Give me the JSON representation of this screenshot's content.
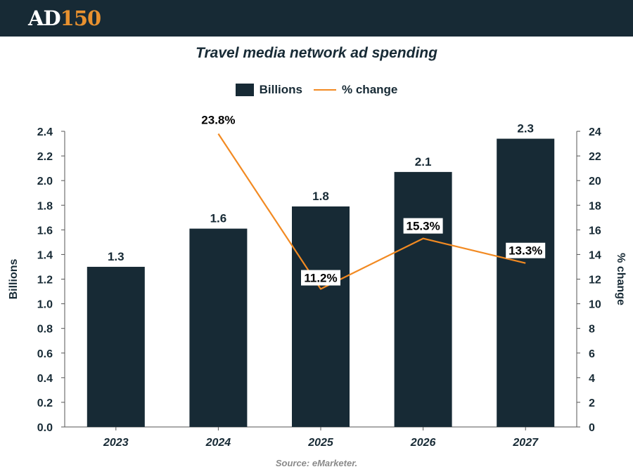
{
  "brand": {
    "logo_part1": "AD",
    "logo_part2": "150"
  },
  "colors": {
    "header_bg": "#172a35",
    "bar": "#172a35",
    "line": "#f28a22",
    "logo_accent": "#e8912f",
    "source_text": "#8a8a8a"
  },
  "source": "Source: eMarketer.",
  "chart_data": {
    "type": "bar",
    "title": "Travel media network ad spending",
    "categories": [
      "2023",
      "2024",
      "2025",
      "2026",
      "2027"
    ],
    "series": [
      {
        "name": "Billions",
        "kind": "bar",
        "axis": "left",
        "values": [
          1.3,
          1.61,
          1.79,
          2.07,
          2.34
        ],
        "labels": [
          "1.3",
          "1.6",
          "1.8",
          "2.1",
          "2.3"
        ]
      },
      {
        "name": "% change",
        "kind": "line",
        "axis": "right",
        "values": [
          null,
          23.8,
          11.2,
          15.3,
          13.3
        ],
        "labels": [
          "",
          "23.8%",
          "11.2%",
          "15.3%",
          "13.3%"
        ]
      }
    ],
    "ylabel": "Billions",
    "y2label": "% change",
    "ylim": [
      0,
      2.4
    ],
    "y2lim": [
      0,
      24
    ],
    "yticks": [
      "0.0",
      "0.2",
      "0.4",
      "0.6",
      "0.8",
      "1.0",
      "1.2",
      "1.4",
      "1.6",
      "1.8",
      "2.0",
      "2.2",
      "2.4"
    ],
    "y2ticks": [
      "0",
      "2",
      "4",
      "6",
      "8",
      "10",
      "12",
      "14",
      "16",
      "18",
      "20",
      "22",
      "24"
    ],
    "legend": "top-center",
    "grid": false
  }
}
